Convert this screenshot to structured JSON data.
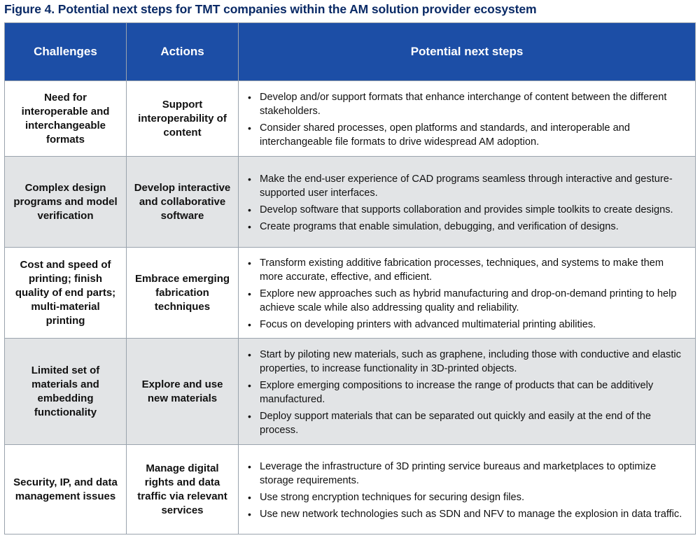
{
  "title": "Figure 4. Potential next steps for TMT companies within the AM solution provider ecosystem",
  "headers": {
    "challenges": "Challenges",
    "actions": "Actions",
    "next_steps": "Potential next steps"
  },
  "bullet_char": "•",
  "rows": [
    {
      "challenge": "Need for interoperable and interchangeable formats",
      "action": "Support interoperability of content",
      "steps": [
        "Develop and/or support formats that enhance interchange of content between the different stakeholders.",
        "Consider shared processes, open platforms and standards, and interoperable and interchangeable file formats to drive widespread AM adoption."
      ]
    },
    {
      "challenge": "Complex design programs and model verification",
      "action": "Develop interactive and collaborative software",
      "steps": [
        "Make the end-user experience of CAD programs seamless through interactive and gesture-supported user interfaces.",
        "Develop software that supports collaboration and provides simple toolkits to create designs.",
        "Create programs that enable simulation, debugging, and verification of designs."
      ]
    },
    {
      "challenge": "Cost and speed of printing; finish quality of end parts; multi-material printing",
      "action": "Embrace emerging fabrication techniques",
      "steps": [
        "Transform existing additive fabrication processes, techniques, and systems to make them more accurate, effective, and efficient.",
        "Explore new approaches such as hybrid manufacturing and drop-on-demand printing to help achieve scale while also addressing quality and reliability.",
        "Focus on developing printers with advanced multimaterial printing abilities."
      ]
    },
    {
      "challenge": "Limited set of materials and embedding functionality",
      "action": "Explore and use new materials",
      "steps": [
        "Start by piloting new materials, such as graphene, including those with conductive and elastic properties, to increase functionality in 3D-printed objects.",
        "Explore emerging compositions to increase the range of products that can be additively manufactured.",
        "Deploy support materials that can be separated out quickly and easily at the end of the process."
      ]
    },
    {
      "challenge": "Security, IP, and data management issues",
      "action": "Manage digital rights and data traffic via relevant services",
      "steps": [
        "Leverage the infrastructure of 3D printing service bureaus and marketplaces to optimize storage requirements.",
        "Use strong encryption techniques for securing design files.",
        "Use new network technologies such as SDN and NFV to manage the explosion in data traffic."
      ]
    }
  ]
}
